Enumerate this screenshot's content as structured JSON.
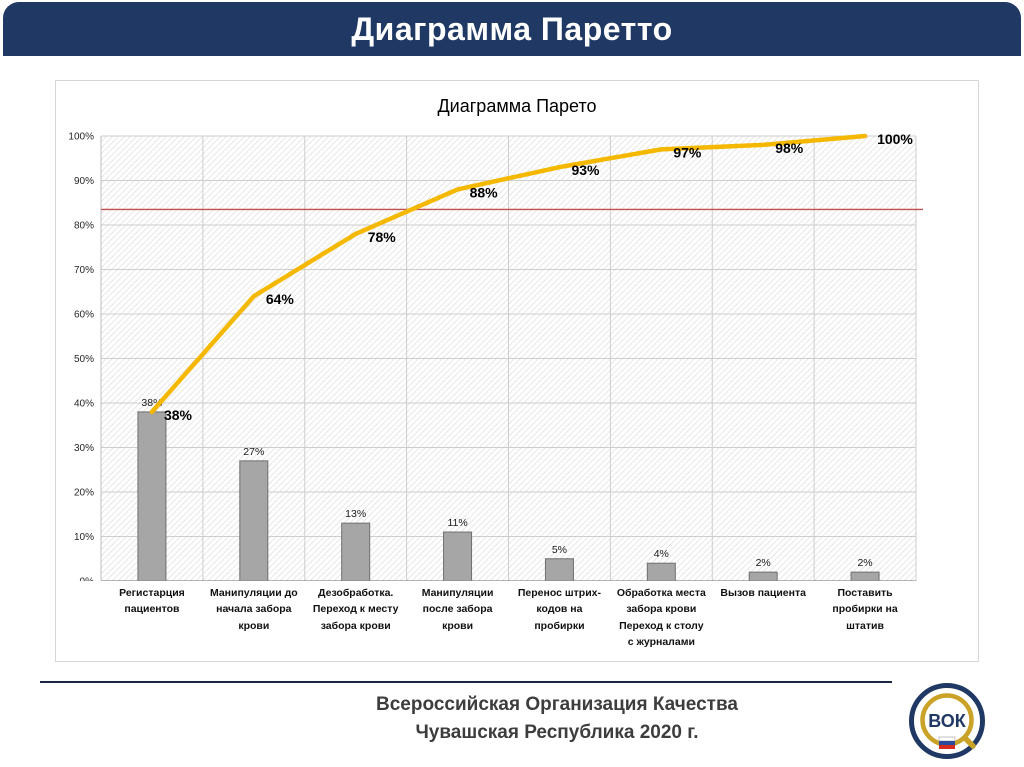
{
  "header": {
    "title": "Диаграмма Паретто",
    "background": "#1f3864",
    "text_color": "#ffffff"
  },
  "chart_data": {
    "type": "pareto",
    "title": "Диаграмма Парето",
    "categories": [
      "Регистарция\nпациентов",
      "Манипуляции до\nначала забора\nкрови",
      "Дезобработка.\nПереход к месту\nзабора крови",
      "Манипуляции\nпосле забора\nкрови",
      "Перенос штрих-\nкодов на\nпробирки",
      "Обработка места\nзабора крови\nПереход к столу\nс журналами",
      "Вызов пациента",
      "Поставить\nпробирки на\nштатив"
    ],
    "bar_values": [
      38,
      27,
      13,
      11,
      5,
      4,
      2,
      2
    ],
    "bar_labels": [
      "38%",
      "27%",
      "13%",
      "11%",
      "5%",
      "4%",
      "2%",
      "2%"
    ],
    "cumulative_values": [
      38,
      64,
      78,
      88,
      93,
      97,
      98,
      100
    ],
    "cumulative_labels": [
      "38%",
      "64%",
      "78%",
      "88%",
      "93%",
      "97%",
      "98%",
      "100%"
    ],
    "reference_line_percent": 83.5,
    "y_axis_ticks": [
      "100%",
      "90%",
      "80%",
      "70%",
      "60%",
      "50%",
      "40%",
      "30%",
      "20%",
      "10%",
      "0%"
    ],
    "ylim": [
      0,
      100
    ],
    "grid": true,
    "legend": "none",
    "bar_color": "#a6a6a6",
    "bar_border_color": "#6f6f6f",
    "line_color": "#f5b800",
    "reference_line_color": "#c0504d"
  },
  "footer": {
    "line1": "Всероссийская Организация Качества",
    "line2": "Чувашская Республика 2020 г.",
    "logo_text": "ВОК"
  }
}
